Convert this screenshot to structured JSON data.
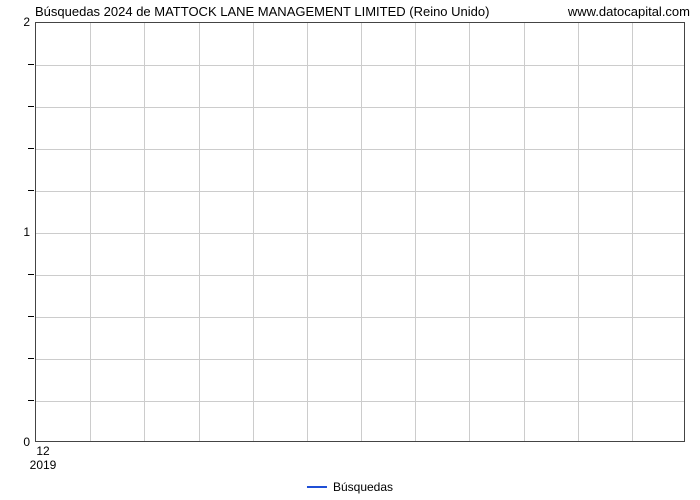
{
  "chart": {
    "type": "line",
    "title": "Búsquedas 2024 de MATTOCK LANE MANAGEMENT LIMITED (Reino Unido)",
    "watermark": "www.datocapital.com",
    "title_fontsize": 13,
    "background_color": "#ffffff",
    "plot_border_color": "#444444",
    "grid_color": "#cccccc",
    "y_axis": {
      "min": 0,
      "max": 2,
      "major_ticks": [
        0,
        1,
        2
      ],
      "minor_tick_count_between": 4,
      "label_fontsize": 12
    },
    "x_axis": {
      "tick_label": "12",
      "year_label": "2019",
      "vertical_gridlines": 12,
      "label_fontsize": 12
    },
    "series": [
      {
        "name": "Búsquedas",
        "color": "#1f4fd6",
        "line_width": 2,
        "data": []
      }
    ],
    "legend": {
      "position": "bottom-center",
      "fontsize": 12,
      "label": "Búsquedas"
    }
  }
}
